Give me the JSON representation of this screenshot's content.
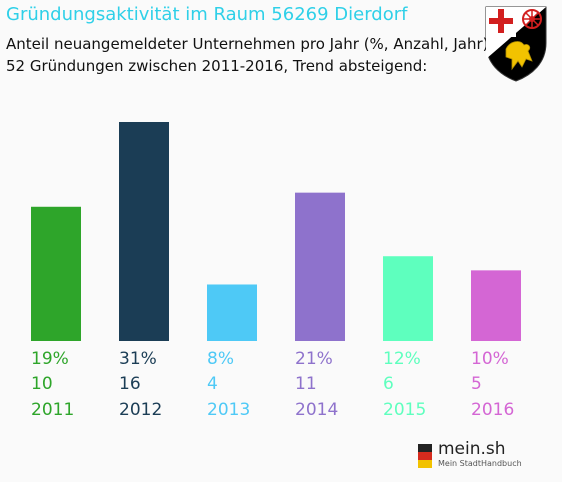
{
  "header": {
    "title": "Gründungsaktivität im Raum 56269 Dierdorf",
    "subtitle_line1": "Anteil neuangemeldeter Unternehmen pro Jahr (%, Anzahl, Jahr)",
    "subtitle_line2": "52 Gründungen zwischen 2011-2016, Trend absteigend:"
  },
  "crest": {
    "icon": "rheinland-pfalz-coat-of-arms-icon"
  },
  "logo": {
    "main": "mein.sh",
    "sub": "Mein StadtHandbuch",
    "icon": "germany-map-icon"
  },
  "chart_data": {
    "type": "bar",
    "categories": [
      "2011",
      "2012",
      "2013",
      "2014",
      "2015",
      "2016"
    ],
    "values": [
      19,
      31,
      8,
      21,
      12,
      10
    ],
    "counts": [
      10,
      16,
      4,
      11,
      6,
      5
    ],
    "percent_labels": [
      "19%",
      "31%",
      "8%",
      "21%",
      "12%",
      "10%"
    ],
    "count_labels": [
      "10",
      "16",
      "4",
      "11",
      "6",
      "5"
    ],
    "colors": [
      "#2ea52a",
      "#1b3d55",
      "#4ec9f6",
      "#8e72cc",
      "#5effbe",
      "#d466d4"
    ],
    "ylim": [
      0,
      31
    ],
    "grid": false,
    "legend": "none"
  }
}
